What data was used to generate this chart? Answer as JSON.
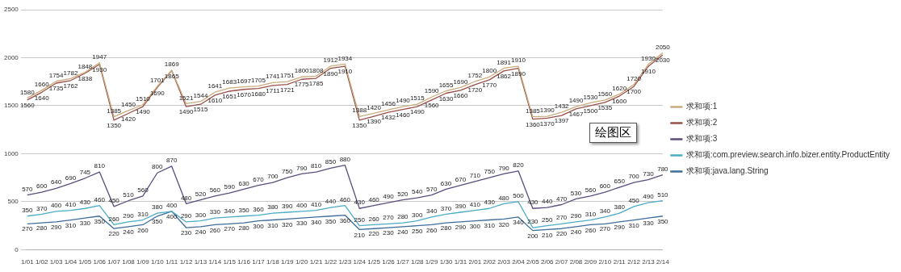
{
  "chart_data": {
    "type": "line",
    "categories": [
      "1/01",
      "1/02",
      "1/03",
      "1/04",
      "1/05",
      "1/06",
      "1/07",
      "1/08",
      "1/09",
      "1/10",
      "1/11",
      "1/12",
      "1/13",
      "1/14",
      "1/15",
      "1/16",
      "1/17",
      "1/18",
      "1/19",
      "1/20",
      "1/21",
      "1/22",
      "1/23",
      "1/24",
      "1/25",
      "1/26",
      "1/27",
      "1/28",
      "1/29",
      "1/30",
      "1/31",
      "2/01",
      "2/02",
      "2/03",
      "2/04",
      "2/05",
      "2/06",
      "2/07",
      "2/08",
      "2/09",
      "2/10",
      "2/11",
      "2/12",
      "2/13",
      "2/14"
    ],
    "series": [
      {
        "name": "求和项:1",
        "color": "#c9ac7c",
        "values": [
          1580,
          1660,
          1754,
          1782,
          1848,
          1947,
          1385,
          1450,
          1510,
          1701,
          1869,
          1521,
          1544,
          1641,
          1683,
          1697,
          1705,
          1741,
          1751,
          1800,
          1808,
          1912,
          1934,
          1388,
          1420,
          1456,
          1490,
          1515,
          1590,
          1655,
          1690,
          1752,
          1800,
          1891,
          1910,
          1385,
          1390,
          1432,
          1490,
          1530,
          1560,
          1620,
          1720,
          1930,
          2050
        ]
      },
      {
        "name": "求和项:2",
        "color": "#9b4f4a",
        "values": [
          1560,
          1640,
          1735,
          1762,
          1838,
          1930,
          1350,
          1420,
          1490,
          1690,
          1865,
          1490,
          1515,
          1610,
          1651,
          1670,
          1680,
          1711,
          1721,
          1775,
          1785,
          1890,
          1910,
          1350,
          1390,
          1432,
          1460,
          1490,
          1560,
          1630,
          1660,
          1720,
          1770,
          1862,
          1890,
          1360,
          1370,
          1397,
          1467,
          1500,
          1535,
          1600,
          1700,
          1910,
          2030
        ]
      },
      {
        "name": "求和项:3",
        "color": "#5b4d7d",
        "values": [
          570,
          600,
          640,
          690,
          745,
          810,
          450,
          510,
          560,
          800,
          870,
          480,
          520,
          560,
          590,
          630,
          670,
          700,
          750,
          790,
          810,
          850,
          880,
          430,
          460,
          490,
          520,
          540,
          570,
          630,
          670,
          710,
          750,
          790,
          820,
          430,
          440,
          470,
          530,
          560,
          600,
          650,
          700,
          730,
          780
        ]
      },
      {
        "name": "求和项:com.preview.search.info.bizer.entity.ProductEntity",
        "color": "#4bacc6",
        "values": [
          350,
          370,
          400,
          410,
          430,
          460,
          260,
          290,
          310,
          380,
          400,
          290,
          300,
          330,
          340,
          350,
          360,
          380,
          390,
          400,
          410,
          440,
          460,
          250,
          260,
          270,
          280,
          300,
          340,
          370,
          390,
          410,
          430,
          480,
          500,
          230,
          250,
          270,
          290,
          310,
          340,
          380,
          450,
          490,
          510
        ]
      },
      {
        "name": "求和项:java.lang.String",
        "color": "#3e6d9c",
        "values": [
          270,
          280,
          290,
          310,
          330,
          350,
          220,
          240,
          260,
          350,
          400,
          230,
          240,
          260,
          270,
          280,
          300,
          310,
          320,
          330,
          340,
          350,
          360,
          210,
          220,
          230,
          240,
          250,
          260,
          280,
          290,
          300,
          310,
          320,
          340,
          200,
          210,
          220,
          240,
          260,
          270,
          290,
          310,
          330,
          350
        ]
      }
    ],
    "ylim": [
      0,
      2500
    ],
    "yticks": [
      0,
      500,
      1000,
      1500,
      2000,
      2500
    ],
    "grid": "y",
    "legend": "right",
    "data_labels": true,
    "marker": "none",
    "line_style": "solid",
    "annotations": [
      "绘图区"
    ]
  }
}
